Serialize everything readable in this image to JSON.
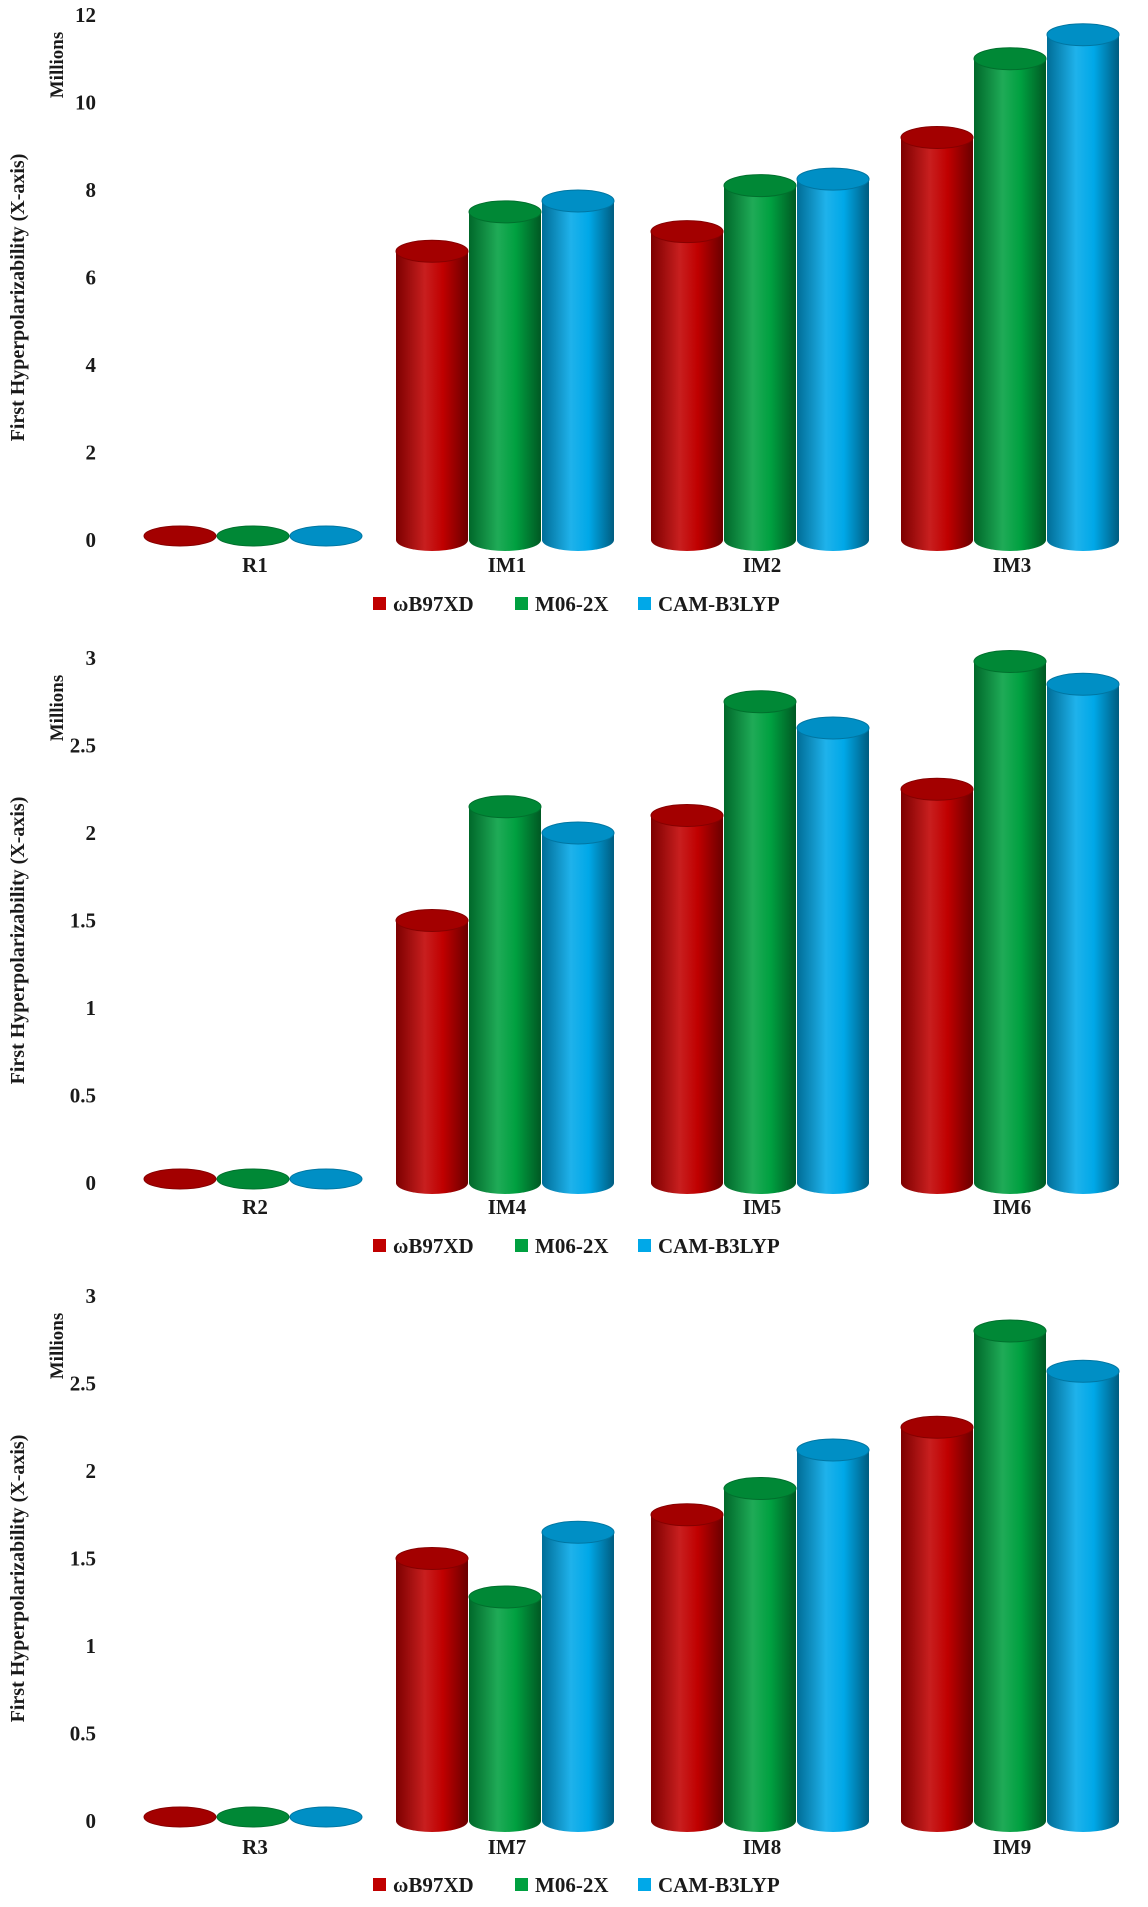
{
  "legend": [
    {
      "name": "ωB97XD",
      "color": "#c00000"
    },
    {
      "name": "M06-2X",
      "color": "#00a040"
    },
    {
      "name": "CAM-B3LYP",
      "color": "#00a8e8"
    }
  ],
  "chart_data": [
    {
      "type": "bar",
      "title": "",
      "ylabel": "First Hyperpolarizability (X-axis)",
      "unit_label": "Millions",
      "categories": [
        "R1",
        "IM1",
        "IM2",
        "IM3"
      ],
      "ylim": [
        0,
        12
      ],
      "yticks": [
        "0",
        "2",
        "4",
        "6",
        "8",
        "10",
        "12"
      ],
      "ytick_values": [
        0,
        2,
        4,
        6,
        8,
        10,
        12
      ],
      "series": [
        {
          "name": "ωB97XD",
          "values": [
            0.01,
            6.6,
            7.05,
            9.2
          ]
        },
        {
          "name": "M06-2X",
          "values": [
            0.01,
            7.5,
            8.1,
            11.0
          ]
        },
        {
          "name": "CAM-B3LYP",
          "values": [
            0.01,
            7.75,
            8.25,
            11.55
          ]
        }
      ]
    },
    {
      "type": "bar",
      "title": "",
      "ylabel": "First Hyperpolarizability (X-axis)",
      "unit_label": "Millions",
      "categories": [
        "R2",
        "IM4",
        "IM5",
        "IM6"
      ],
      "ylim": [
        0,
        3
      ],
      "yticks": [
        "0",
        "0.5",
        "1",
        "1.5",
        "2",
        "2.5",
        "3"
      ],
      "ytick_values": [
        0,
        0.5,
        1,
        1.5,
        2,
        2.5,
        3
      ],
      "series": [
        {
          "name": "ωB97XD",
          "values": [
            0.003,
            1.5,
            2.1,
            2.25
          ]
        },
        {
          "name": "M06-2X",
          "values": [
            0.003,
            2.15,
            2.75,
            2.98
          ]
        },
        {
          "name": "CAM-B3LYP",
          "values": [
            0.003,
            2.0,
            2.6,
            2.85
          ]
        }
      ]
    },
    {
      "type": "bar",
      "title": "",
      "ylabel": "First Hyperpolarizability (X-axis)",
      "unit_label": "Millions",
      "categories": [
        "R3",
        "IM7",
        "IM8",
        "IM9"
      ],
      "ylim": [
        0,
        3
      ],
      "yticks": [
        "0",
        "0.5",
        "1",
        "1.5",
        "2",
        "2.5",
        "3"
      ],
      "ytick_values": [
        0,
        0.5,
        1,
        1.5,
        2,
        2.5,
        3
      ],
      "series": [
        {
          "name": "ωB97XD",
          "values": [
            0.003,
            1.5,
            1.75,
            2.25
          ]
        },
        {
          "name": "M06-2X",
          "values": [
            0.003,
            1.28,
            1.9,
            2.8
          ]
        },
        {
          "name": "CAM-B3LYP",
          "values": [
            0.003,
            1.65,
            2.12,
            2.57
          ]
        }
      ]
    }
  ]
}
